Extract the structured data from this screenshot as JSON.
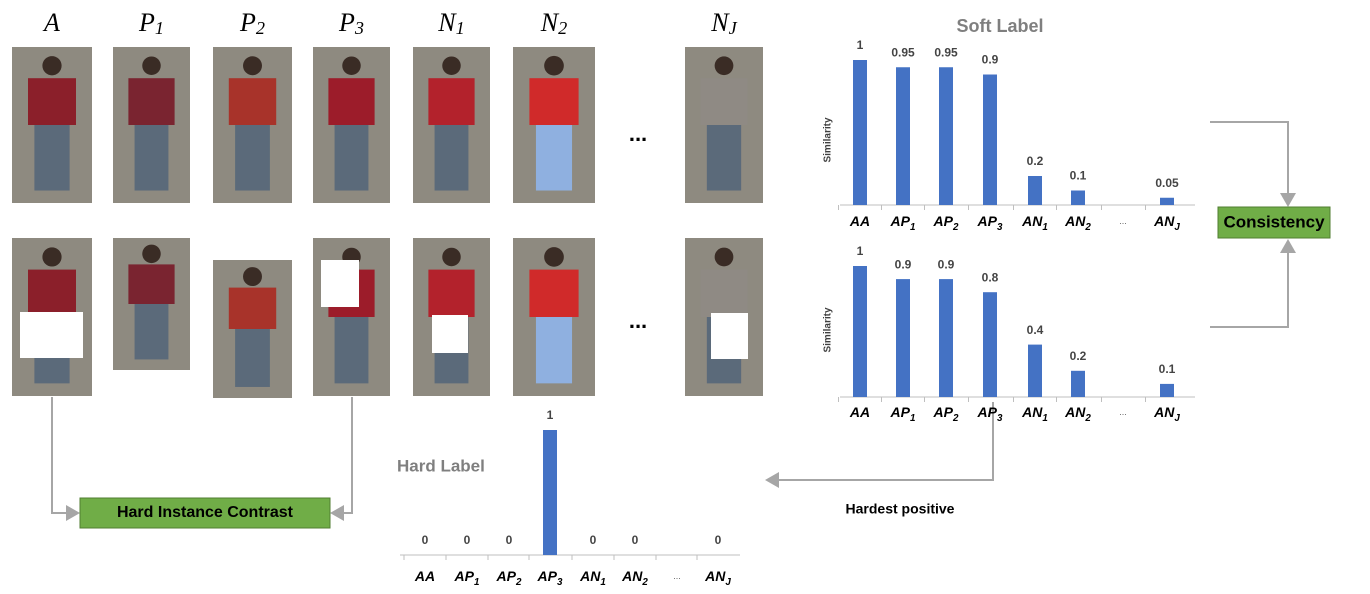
{
  "columns": [
    {
      "base": "A"
    },
    {
      "base": "P",
      "sub": "1"
    },
    {
      "base": "P",
      "sub": "2"
    },
    {
      "base": "P",
      "sub": "3"
    },
    {
      "base": "N",
      "sub": "1"
    },
    {
      "base": "N",
      "sub": "2"
    },
    {
      "base": "N",
      "sub": "J"
    }
  ],
  "ellipsis": "...",
  "soft_label": {
    "title": "Soft Label",
    "y_label": "Similarity",
    "categories": [
      {
        "base": "AA"
      },
      {
        "base": "AP",
        "sub": "1"
      },
      {
        "base": "AP",
        "sub": "2"
      },
      {
        "base": "AP",
        "sub": "3"
      },
      {
        "base": "AN",
        "sub": "1"
      },
      {
        "base": "AN",
        "sub": "2"
      },
      {
        "base": "..."
      },
      {
        "base": "AN",
        "sub": "J"
      }
    ],
    "charts": [
      {
        "values": [
          1,
          0.95,
          0.95,
          0.9,
          0.2,
          0.1,
          null,
          0.05
        ]
      },
      {
        "values": [
          1,
          0.9,
          0.9,
          0.8,
          0.4,
          0.2,
          null,
          0.1
        ]
      }
    ]
  },
  "hard_label": {
    "title": "Hard Label",
    "categories": [
      {
        "base": "AA"
      },
      {
        "base": "AP",
        "sub": "1"
      },
      {
        "base": "AP",
        "sub": "2"
      },
      {
        "base": "AP",
        "sub": "3"
      },
      {
        "base": "AN",
        "sub": "1"
      },
      {
        "base": "AN",
        "sub": "2"
      },
      {
        "base": "..."
      },
      {
        "base": "AN",
        "sub": "J"
      }
    ],
    "values": [
      0,
      0,
      0,
      1,
      0,
      0,
      null,
      0
    ]
  },
  "boxes": {
    "consistency": "Consistency",
    "hard_instance_contrast": "Hard Instance Contrast"
  },
  "hardest_positive": "Hardest positive"
}
